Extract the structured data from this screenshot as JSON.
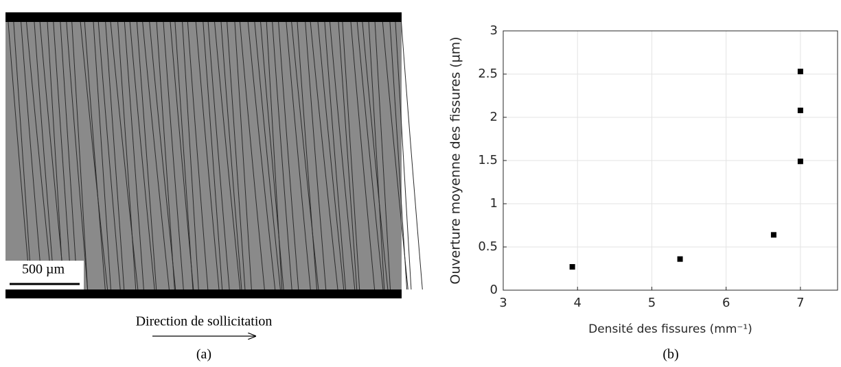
{
  "figure_a": {
    "scale_bar": "500 µm",
    "direction": "Direction de sollicitation",
    "caption": "(a)"
  },
  "chart_data": {
    "type": "scatter",
    "caption": "(b)",
    "xlabel": "Densité des fissures (mm⁻¹)",
    "ylabel": "Ouverture moyenne des fissures (µm)",
    "x": [
      3.93,
      5.38,
      6.64,
      7.0,
      7.0,
      7.0
    ],
    "values": [
      0.27,
      0.36,
      0.64,
      1.49,
      2.08,
      2.53
    ],
    "color": "#000000",
    "xlim": [
      3,
      7.5
    ],
    "xticks": [
      3,
      4,
      5,
      6,
      7
    ],
    "ylim": [
      0,
      3
    ],
    "yticks": [
      0,
      0.5,
      1,
      1.5,
      2,
      2.5,
      3
    ],
    "grid": true
  }
}
